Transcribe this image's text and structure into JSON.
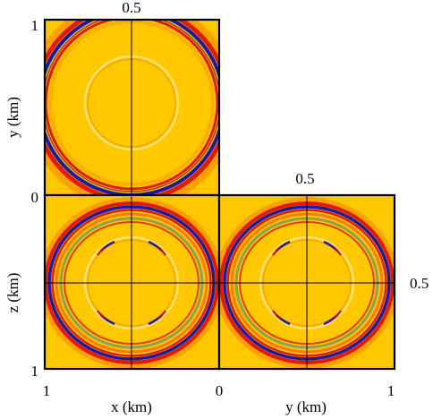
{
  "panels": [
    {
      "id": "xy",
      "top_tick": "0.5",
      "right_tick": "",
      "rings": "single"
    },
    {
      "id": "xz",
      "top_tick": "",
      "right_tick": "",
      "rings": "double"
    },
    {
      "id": "yz",
      "top_tick": "0.5",
      "right_tick": "0.5",
      "rings": "double"
    }
  ],
  "labels": {
    "y_axis": "y (km)",
    "z_axis": "z (km)",
    "x_axis_bottom": "x (km)",
    "y_axis_bottom": "y (km)",
    "tick_1_top": "1",
    "tick_0_mid": "0",
    "tick_1_bottom": "1",
    "bottom_x_1": "1",
    "bottom_0": "0",
    "bottom_y_1": "1",
    "xy_top_tick": "0.5",
    "yz_top_tick": "0.5",
    "yz_right_tick": "0.5"
  },
  "colors": {
    "background_field": "#ffc800",
    "positive": "#d40000",
    "negative": "#1a1aa8",
    "transition": "#8fa050",
    "frame": "#000000"
  }
}
